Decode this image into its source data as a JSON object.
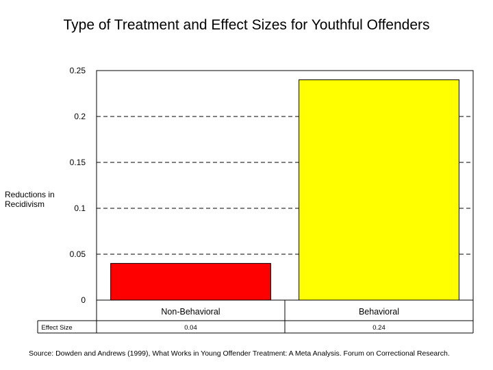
{
  "chart_data": {
    "type": "bar",
    "title": "Type of Treatment and Effect Sizes for Youthful Offenders",
    "ylabel": "Reductions in Recidivism",
    "xlabel": "",
    "categories": [
      "Non-Behavioral",
      "Behavioral"
    ],
    "values": [
      0.04,
      0.24
    ],
    "colors": [
      "#ff0000",
      "#ffff00"
    ],
    "yticks": [
      "0",
      "0.05",
      "0.1",
      "0.15",
      "0.2",
      "0.25"
    ],
    "ytick_values": [
      0,
      0.05,
      0.1,
      0.15,
      0.2,
      0.25
    ],
    "ylim": [
      0,
      0.25
    ],
    "grid": "dashed horizontal",
    "legend": "none",
    "table": {
      "row_label": "Effect Size",
      "cells": [
        "0.04",
        "0.24"
      ]
    }
  },
  "source": "Source: Dowden and Andrews (1999), What Works in Young Offender Treatment: A Meta Analysis. Forum on Correctional Research."
}
